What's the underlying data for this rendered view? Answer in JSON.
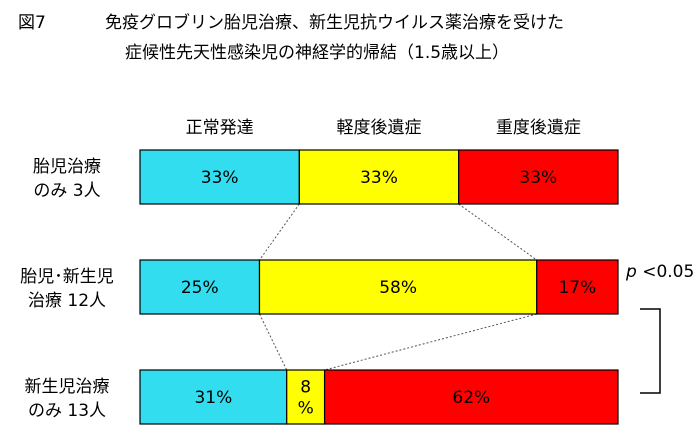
{
  "chart_data": {
    "type": "bar",
    "stacked": true,
    "orientation": "horizontal",
    "title_label": "図7",
    "title_line1": "免疫グロブリン胎児治療、新生児抗ウイルス薬治療を受けた",
    "title_line2": "症候性先天性感染児の神経学的帰結（1.5歳以上）",
    "xlim": [
      0,
      100
    ],
    "legend_placement": "top",
    "categories": [
      {
        "line1": "胎児治療",
        "line2": "のみ 3人"
      },
      {
        "line1": "胎児･新生児",
        "line2": "治療 12人"
      },
      {
        "line1": "新生児治療",
        "line2": "のみ 13人"
      }
    ],
    "series": [
      {
        "name": "正常発達",
        "color": "#33ddf0",
        "values": [
          33,
          25,
          31
        ],
        "labels": [
          "33%",
          "25%",
          "31%"
        ]
      },
      {
        "name": "軽度後遺症",
        "color": "#ffff00",
        "values": [
          33,
          58,
          8
        ],
        "labels": [
          "33%",
          "58%",
          "8\n%"
        ]
      },
      {
        "name": "重度後遺症",
        "color": "#ff0000",
        "values": [
          33,
          17,
          62
        ],
        "labels": [
          "33%",
          "17%",
          "62%"
        ]
      }
    ],
    "annotation": {
      "p": "p",
      "text": " <0.05"
    }
  }
}
